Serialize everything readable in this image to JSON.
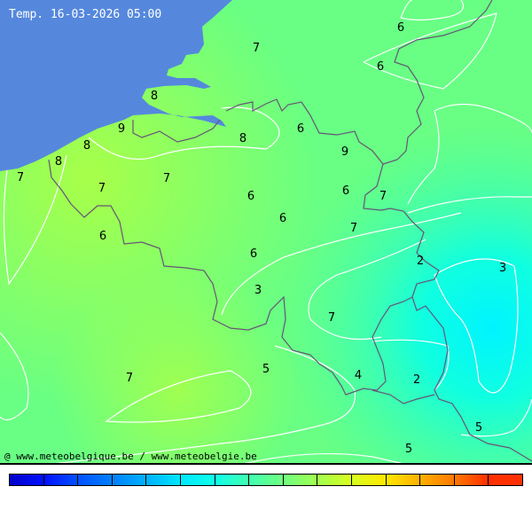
{
  "title": "Temp. 16-03-2026 05:00",
  "credit": "@ www.meteobelgique.be / www.meteobelgie.be",
  "colors": {
    "sea": "#5588dd",
    "border": "#665577",
    "contour": "#ffffff"
  },
  "isotherm_labels": [
    "7",
    "6",
    "6",
    "8",
    "9",
    "8",
    "8",
    "8",
    "6",
    "9",
    "7",
    "7",
    "7",
    "6",
    "6",
    "7",
    "6",
    "7",
    "6",
    "6",
    "3",
    "2",
    "3",
    "7",
    "7",
    "5",
    "4",
    "2",
    "5"
  ],
  "colorbar": [
    "#0000c8",
    "#0010ff",
    "#0050ff",
    "#0080ff",
    "#00b0ff",
    "#00e8ff",
    "#10ffe8",
    "#40ffb0",
    "#70ff80",
    "#a0ff50",
    "#d8ff20",
    "#ffe800",
    "#ffb000",
    "#ff7800",
    "#ff3000"
  ]
}
